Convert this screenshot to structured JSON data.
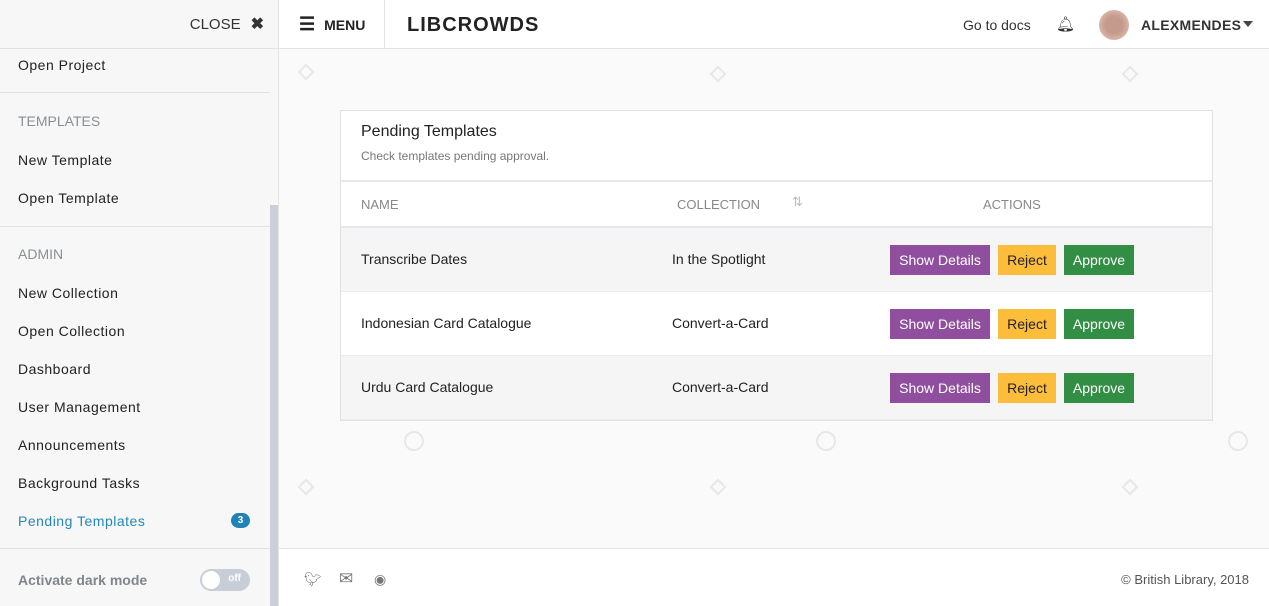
{
  "sidebar": {
    "close_label": "CLOSE",
    "close_icon": "✖",
    "items": [
      "Open Project"
    ],
    "templates_heading": "TEMPLATES",
    "templates": [
      "New Template",
      "Open Template"
    ],
    "admin_heading": "ADMIN",
    "admin": [
      "New Collection",
      "Open Collection",
      "Dashboard",
      "User Management",
      "Announcements",
      "Background Tasks",
      "Pending Templates"
    ],
    "pending_badge": "3",
    "dark_mode_label": "Activate dark mode",
    "dark_mode_state": "off"
  },
  "header": {
    "menu_label": "MENU",
    "logo": "LIBCROWDS",
    "docs_link": "Go to docs",
    "username": "ALEXMENDES"
  },
  "card": {
    "title": "Pending Templates",
    "subtitle": "Check templates pending approval.",
    "columns": [
      "NAME",
      "COLLECTION",
      "ACTIONS"
    ],
    "rows": [
      {
        "name": "Transcribe Dates",
        "collection": "In the Spotlight"
      },
      {
        "name": "Indonesian Card Catalogue",
        "collection": "Convert-a-Card"
      },
      {
        "name": "Urdu Card Catalogue",
        "collection": "Convert-a-Card"
      }
    ],
    "actions": {
      "details": "Show Details",
      "reject": "Reject",
      "approve": "Approve"
    }
  },
  "footer": {
    "copyright": "© British Library, 2018"
  },
  "colors": {
    "accent": "#2487b8",
    "details": "#8f4f9e",
    "reject": "#fcbd3b",
    "approve": "#338e45"
  }
}
